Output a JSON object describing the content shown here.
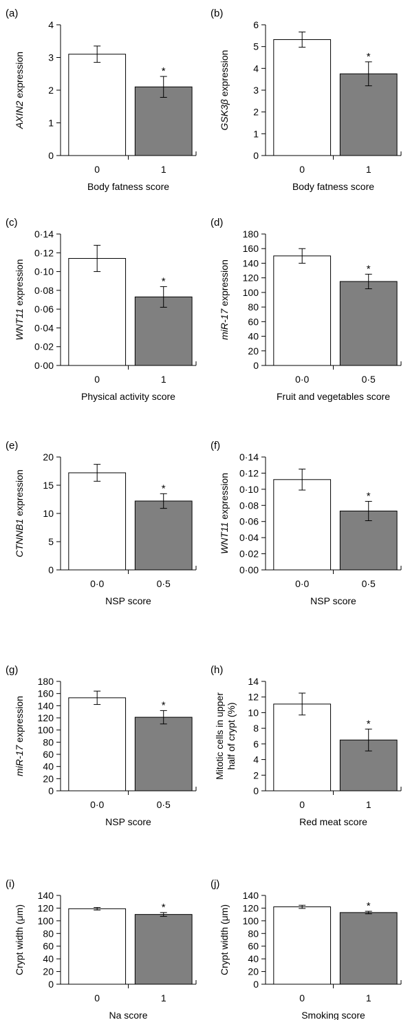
{
  "chart_data": [
    {
      "panel": "(a)",
      "type": "bar",
      "categories": [
        "0",
        "1"
      ],
      "values": [
        3.1,
        2.1
      ],
      "errors": [
        0.25,
        0.32
      ],
      "ylim": [
        0,
        4
      ],
      "yticks": [
        "0",
        "1",
        "2",
        "3",
        "4"
      ],
      "ylabel_italic": "AXIN2",
      "ylabel": " expression",
      "xlabel": "Body fatness score",
      "significance": [
        "",
        "*"
      ]
    },
    {
      "panel": "(b)",
      "type": "bar",
      "categories": [
        "0",
        "1"
      ],
      "values": [
        5.32,
        3.75
      ],
      "errors": [
        0.35,
        0.55
      ],
      "ylim": [
        0,
        6
      ],
      "yticks": [
        "0",
        "1",
        "2",
        "3",
        "4",
        "5",
        "6"
      ],
      "ylabel_italic": "GSK3β",
      "ylabel": " expression",
      "xlabel": "Body fatness score",
      "significance": [
        "",
        "*"
      ]
    },
    {
      "panel": "(c)",
      "type": "bar",
      "categories": [
        "0",
        "1"
      ],
      "values": [
        0.114,
        0.073
      ],
      "errors": [
        0.014,
        0.011
      ],
      "ylim": [
        0,
        0.14
      ],
      "yticks": [
        "0·00",
        "0·02",
        "0·04",
        "0·06",
        "0·08",
        "0·10",
        "0·12",
        "0·14"
      ],
      "ylabel_italic": "WNT11",
      "ylabel": " expression",
      "xlabel": "Physical activity score",
      "significance": [
        "",
        "*"
      ]
    },
    {
      "panel": "(d)",
      "type": "bar",
      "categories": [
        "0·0",
        "0·5"
      ],
      "values": [
        150,
        115
      ],
      "errors": [
        10,
        10
      ],
      "ylim": [
        0,
        180
      ],
      "yticks": [
        "0",
        "20",
        "40",
        "60",
        "80",
        "100",
        "120",
        "140",
        "160",
        "180"
      ],
      "ylabel_italic": "miR-17",
      "ylabel": " expression",
      "xlabel": "Fruit and vegetables score",
      "significance": [
        "",
        "*"
      ]
    },
    {
      "panel": "(e)",
      "type": "bar",
      "categories": [
        "0·0",
        "0·5"
      ],
      "values": [
        17.2,
        12.2
      ],
      "errors": [
        1.5,
        1.3
      ],
      "ylim": [
        0,
        20
      ],
      "yticks": [
        "0",
        "5",
        "10",
        "15",
        "20"
      ],
      "ylabel_italic": "CTNNB1",
      "ylabel": " expression",
      "xlabel": "NSP score",
      "significance": [
        "",
        "*"
      ]
    },
    {
      "panel": "(f)",
      "type": "bar",
      "categories": [
        "0·0",
        "0·5"
      ],
      "values": [
        0.112,
        0.073
      ],
      "errors": [
        0.013,
        0.012
      ],
      "ylim": [
        0,
        0.14
      ],
      "yticks": [
        "0·00",
        "0·02",
        "0·04",
        "0·06",
        "0·08",
        "0·10",
        "0·12",
        "0·14"
      ],
      "ylabel_italic": "WNT11",
      "ylabel": " expression",
      "xlabel": "NSP score",
      "significance": [
        "",
        "*"
      ]
    },
    {
      "panel": "(g)",
      "type": "bar",
      "categories": [
        "0·0",
        "0·5"
      ],
      "values": [
        153,
        121
      ],
      "errors": [
        11,
        11
      ],
      "ylim": [
        0,
        180
      ],
      "yticks": [
        "0",
        "20",
        "40",
        "60",
        "80",
        "100",
        "120",
        "140",
        "160",
        "180"
      ],
      "ylabel_italic": "miR-17",
      "ylabel": " expression",
      "xlabel": "NSP score",
      "significance": [
        "",
        "*"
      ]
    },
    {
      "panel": "(h)",
      "type": "bar",
      "categories": [
        "0",
        "1"
      ],
      "values": [
        11.1,
        6.5
      ],
      "errors": [
        1.4,
        1.4
      ],
      "ylim": [
        0,
        14
      ],
      "yticks": [
        "0",
        "2",
        "4",
        "6",
        "8",
        "10",
        "12",
        "14"
      ],
      "ylabel_italic": "",
      "ylabel": "Mitotic cells in upper",
      "ylabel2": "half of crypt (%)",
      "xlabel": "Red meat score",
      "significance": [
        "",
        "*"
      ]
    },
    {
      "panel": "(i)",
      "type": "bar",
      "categories": [
        "0",
        "1"
      ],
      "values": [
        119,
        110
      ],
      "errors": [
        2,
        3
      ],
      "ylim": [
        0,
        140
      ],
      "yticks": [
        "0",
        "20",
        "40",
        "60",
        "80",
        "100",
        "120",
        "140"
      ],
      "ylabel_italic": "",
      "ylabel": "Crypt width (μm)",
      "xlabel": "Na score",
      "significance": [
        "",
        "*"
      ]
    },
    {
      "panel": "(j)",
      "type": "bar",
      "categories": [
        "0",
        "1"
      ],
      "values": [
        122,
        113
      ],
      "errors": [
        2.5,
        2
      ],
      "ylim": [
        0,
        140
      ],
      "yticks": [
        "0",
        "20",
        "40",
        "60",
        "80",
        "100",
        "120",
        "140"
      ],
      "ylabel_italic": "",
      "ylabel": "Crypt width (μm)",
      "xlabel": "Smoking score",
      "significance": [
        "",
        "*"
      ]
    }
  ],
  "colors": {
    "bar_control": "#ffffff",
    "bar_high": "#808080",
    "stroke": "#000000"
  }
}
